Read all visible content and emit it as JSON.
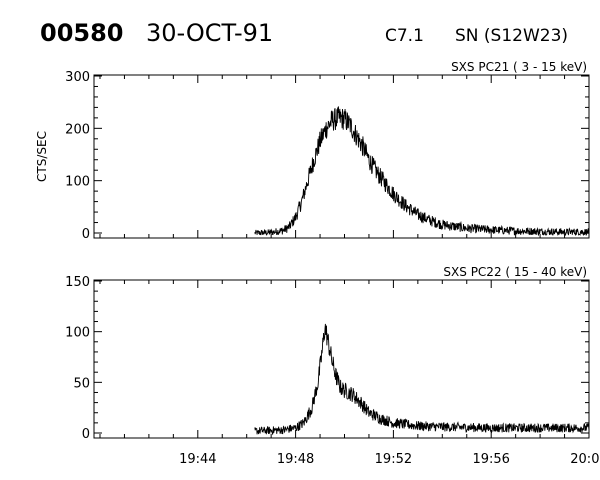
{
  "header": {
    "event_id": "00580",
    "date": "30-OCT-91",
    "goes_class": "C7.1",
    "location": "SN (S12W23)"
  },
  "colors": {
    "background": "#ffffff",
    "foreground": "#000000"
  },
  "chart_data": [
    {
      "type": "line",
      "title": "SXS PC21  (  3 - 15 keV)",
      "ylabel": "CTS/SEC",
      "xlabel": "",
      "xlim": [
        "19:40",
        "20:00"
      ],
      "ylim": [
        0,
        300
      ],
      "yticks": [
        0,
        100,
        200,
        300
      ],
      "xticks": [
        "19:44",
        "19:48",
        "19:52",
        "19:56",
        "20:00"
      ],
      "show_xtick_labels": false,
      "data_start": "19:46:20",
      "series": [
        {
          "x": [
            "19:46:20",
            "19:47:00",
            "19:47:30",
            "19:47:45",
            "19:48:00",
            "19:48:15",
            "19:48:30",
            "19:48:45",
            "19:49:00",
            "19:49:15",
            "19:49:30",
            "19:49:45",
            "19:50:00",
            "19:50:15",
            "19:50:30",
            "19:50:45",
            "19:51:00",
            "19:51:20",
            "19:51:40",
            "19:52:00",
            "19:52:30",
            "19:53:00",
            "19:53:30",
            "19:54:00",
            "19:55:00",
            "19:56:00",
            "19:57:00",
            "19:58:00",
            "19:59:00",
            "20:00:00"
          ],
          "y": [
            0,
            1,
            5,
            12,
            30,
            60,
            100,
            140,
            175,
            200,
            215,
            220,
            218,
            205,
            185,
            165,
            140,
            115,
            95,
            75,
            52,
            35,
            24,
            16,
            9,
            6,
            4,
            3,
            2,
            2
          ],
          "noise": 9
        }
      ]
    },
    {
      "type": "line",
      "title": "SXS PC22  ( 15 - 40 keV)",
      "ylabel": "",
      "xlabel": "",
      "xlim": [
        "19:40",
        "20:00"
      ],
      "ylim": [
        0,
        150
      ],
      "yticks": [
        0,
        50,
        100,
        150
      ],
      "xticks": [
        "19:44",
        "19:48",
        "19:52",
        "19:56",
        "20:00"
      ],
      "show_xtick_labels": true,
      "data_start": "19:46:20",
      "series": [
        {
          "x": [
            "19:46:20",
            "19:47:30",
            "19:48:00",
            "19:48:20",
            "19:48:40",
            "19:48:55",
            "19:49:05",
            "19:49:12",
            "19:49:20",
            "19:49:30",
            "19:49:40",
            "19:49:50",
            "19:50:00",
            "19:50:10",
            "19:50:20",
            "19:50:40",
            "19:51:00",
            "19:51:30",
            "19:52:00",
            "19:53:00",
            "19:54:00",
            "19:56:00",
            "19:58:00",
            "20:00:00"
          ],
          "y": [
            2,
            3,
            5,
            10,
            25,
            50,
            80,
            105,
            90,
            70,
            55,
            45,
            42,
            40,
            38,
            30,
            20,
            14,
            10,
            7,
            6,
            5,
            5,
            5
          ],
          "noise": 4.5
        }
      ]
    }
  ]
}
